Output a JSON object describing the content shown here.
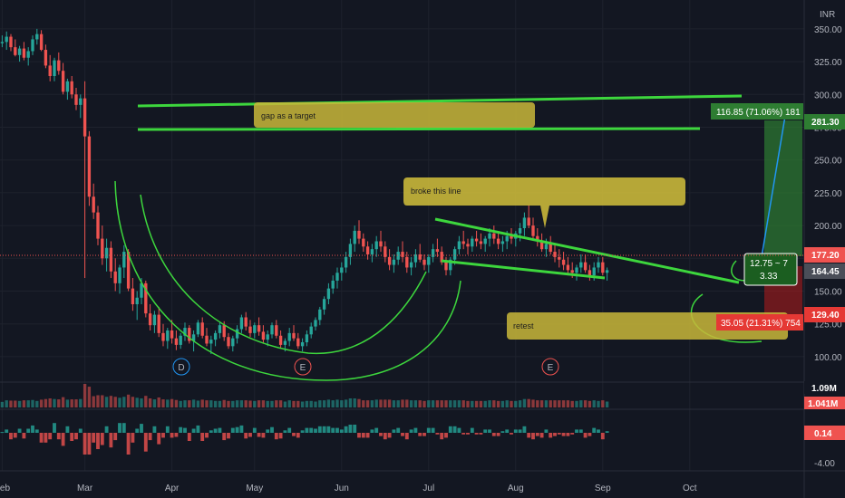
{
  "chart_data": [
    {
      "type": "candlestick",
      "currency": "INR",
      "price_axis_ticks": [
        "350.00",
        "325.00",
        "300.00",
        "275.00",
        "250.00",
        "225.00",
        "200.00",
        "175.00",
        "150.00",
        "125.00",
        "100.00"
      ],
      "ylim": [
        82,
        372
      ],
      "time_axis_labels": [
        "Feb",
        "Mar",
        "Apr",
        "May",
        "Jun",
        "Jul",
        "Aug",
        "Sep",
        "Oct"
      ],
      "month_index": [
        0,
        19,
        39,
        58,
        78,
        98,
        118,
        138,
        158
      ],
      "total_bars": 175,
      "series": [
        {
          "values": [
            [
              339,
              345,
              336,
              340
            ],
            [
              340,
              348,
              334,
              344
            ],
            [
              344,
              346,
              333,
              336
            ],
            [
              336,
              342,
              329,
              330
            ],
            [
              330,
              337,
              325,
              335
            ],
            [
              335,
              340,
              326,
              328
            ],
            [
              328,
              336,
              322,
              333
            ],
            [
              333,
              345,
              330,
              342
            ],
            [
              342,
              350,
              338,
              346
            ],
            [
              346,
              349,
              333,
              334
            ],
            [
              334,
              338,
              320,
              322
            ],
            [
              322,
              330,
              310,
              314
            ],
            [
              314,
              328,
              310,
              326
            ],
            [
              326,
              332,
              315,
              318
            ],
            [
              318,
              324,
              300,
              302
            ],
            [
              302,
              312,
              296,
              310
            ],
            [
              310,
              314,
              297,
              300
            ],
            [
              300,
              305,
              288,
              292
            ],
            [
              292,
              300,
              282,
              297
            ],
            [
              297,
              310,
              160,
              268
            ],
            [
              268,
              272,
              215,
              222
            ],
            [
              222,
              232,
              205,
              210
            ],
            [
              210,
              215,
              185,
              190
            ],
            [
              190,
              200,
              170,
              175
            ],
            [
              175,
              190,
              165,
              183
            ],
            [
              183,
              188,
              160,
              165
            ],
            [
              165,
              175,
              150,
              156
            ],
            [
              156,
              170,
              148,
              168
            ],
            [
              168,
              185,
              160,
              180
            ],
            [
              180,
              182,
              150,
              152
            ],
            [
              152,
              160,
              135,
              140
            ],
            [
              140,
              150,
              128,
              145
            ],
            [
              145,
              160,
              140,
              156
            ],
            [
              156,
              158,
              130,
              133
            ],
            [
              133,
              140,
              120,
              124
            ],
            [
              124,
              135,
              118,
              132
            ],
            [
              132,
              138,
              115,
              118
            ],
            [
              118,
              125,
              108,
              112
            ],
            [
              112,
              122,
              106,
              120
            ],
            [
              120,
              128,
              110,
              114
            ],
            [
              114,
              120,
              105,
              109
            ],
            [
              109,
              118,
              106,
              116
            ],
            [
              116,
              126,
              112,
              122
            ],
            [
              122,
              124,
              110,
              112
            ],
            [
              112,
              120,
              104,
              117
            ],
            [
              117,
              128,
              115,
              126
            ],
            [
              126,
              130,
              114,
              116
            ],
            [
              116,
              122,
              108,
              110
            ],
            [
              110,
              116,
              102,
              113
            ],
            [
              113,
              120,
              108,
              118
            ],
            [
              118,
              126,
              114,
              124
            ],
            [
              124,
              127,
              112,
              115
            ],
            [
              115,
              118,
              106,
              108
            ],
            [
              108,
              116,
              104,
              114
            ],
            [
              114,
              124,
              110,
              121
            ],
            [
              121,
              132,
              118,
              130
            ],
            [
              130,
              134,
              120,
              123
            ],
            [
              123,
              128,
              115,
              118
            ],
            [
              118,
              126,
              114,
              124
            ],
            [
              124,
              130,
              116,
              119
            ],
            [
              119,
              124,
              110,
              113
            ],
            [
              113,
              120,
              108,
              117
            ],
            [
              117,
              126,
              114,
              124
            ],
            [
              124,
              128,
              114,
              116
            ],
            [
              116,
              120,
              106,
              109
            ],
            [
              109,
              114,
              104,
              112
            ],
            [
              112,
              122,
              108,
              118
            ],
            [
              118,
              124,
              112,
              114
            ],
            [
              114,
              118,
              106,
              108
            ],
            [
              108,
              114,
              104,
              111
            ],
            [
              111,
              120,
              108,
              117
            ],
            [
              117,
              126,
              114,
              123
            ],
            [
              123,
              130,
              120,
              128
            ],
            [
              128,
              138,
              124,
              136
            ],
            [
              136,
              146,
              132,
              144
            ],
            [
              144,
              156,
              140,
              152
            ],
            [
              152,
              162,
              148,
              158
            ],
            [
              158,
              168,
              152,
              164
            ],
            [
              164,
              172,
              158,
              168
            ],
            [
              168,
              180,
              164,
              176
            ],
            [
              176,
              190,
              170,
              186
            ],
            [
              186,
              200,
              180,
              196
            ],
            [
              196,
              204,
              186,
              190
            ],
            [
              190,
              194,
              180,
              184
            ],
            [
              184,
              188,
              174,
              178
            ],
            [
              178,
              186,
              172,
              182
            ],
            [
              182,
              192,
              176,
              188
            ],
            [
              188,
              196,
              180,
              184
            ],
            [
              184,
              188,
              172,
              176
            ],
            [
              176,
              182,
              166,
              170
            ],
            [
              170,
              178,
              164,
              174
            ],
            [
              174,
              184,
              170,
              180
            ],
            [
              180,
              188,
              172,
              176
            ],
            [
              176,
              180,
              164,
              168
            ],
            [
              168,
              176,
              162,
              172
            ],
            [
              172,
              182,
              168,
              178
            ],
            [
              178,
              186,
              172,
              174
            ],
            [
              174,
              178,
              166,
              170
            ],
            [
              170,
              178,
              164,
              176
            ],
            [
              176,
              186,
              172,
              182
            ],
            [
              182,
              190,
              176,
              180
            ],
            [
              180,
              184,
              170,
              172
            ],
            [
              172,
              176,
              162,
              166
            ],
            [
              166,
              176,
              162,
              174
            ],
            [
              174,
              184,
              170,
              182
            ],
            [
              182,
              192,
              178,
              188
            ],
            [
              188,
              196,
              182,
              186
            ],
            [
              186,
              190,
              178,
              184
            ],
            [
              184,
              192,
              180,
              190
            ],
            [
              190,
              196,
              184,
              188
            ],
            [
              188,
              194,
              182,
              186
            ],
            [
              186,
              192,
              180,
              190
            ],
            [
              190,
              198,
              184,
              194
            ],
            [
              194,
              200,
              186,
              190
            ],
            [
              190,
              194,
              182,
              186
            ],
            [
              186,
              192,
              180,
              188
            ],
            [
              188,
              196,
              182,
              192
            ],
            [
              192,
              198,
              186,
              190
            ],
            [
              190,
              196,
              184,
              194
            ],
            [
              194,
              202,
              188,
              198
            ],
            [
              198,
              210,
              192,
              206
            ],
            [
              206,
              216,
              198,
              200
            ],
            [
              200,
              206,
              190,
              192
            ],
            [
              192,
              198,
              184,
              188
            ],
            [
              188,
              194,
              180,
              182
            ],
            [
              182,
              190,
              176,
              186
            ],
            [
              186,
              192,
              178,
              180
            ],
            [
              180,
              186,
              172,
              176
            ],
            [
              176,
              182,
              168,
              174
            ],
            [
              174,
              180,
              166,
              170
            ],
            [
              170,
              176,
              162,
              166
            ],
            [
              166,
              172,
              160,
              164
            ],
            [
              164,
              170,
              158,
              168
            ],
            [
              168,
              178,
              164,
              172
            ],
            [
              172,
              178,
              164,
              166
            ],
            [
              166,
              170,
              158,
              162
            ],
            [
              162,
              172,
              158,
              168
            ],
            [
              168,
              176,
              164,
              172
            ],
            [
              172,
              176,
              162,
              164
            ],
            [
              164,
              168,
              158,
              166
            ]
          ]
        }
      ],
      "volume_axis_labels": [
        "1.09M",
        "1.041M"
      ],
      "oscillator_axis_labels": [
        "0.14",
        "-4.00"
      ],
      "price_tags": {
        "target": "281.30",
        "last": "177.20",
        "current": "164.45",
        "stop": "129.40"
      },
      "annotations": {
        "gap_note": "gap as a target",
        "broke_note": "broke this line",
        "retest_note": "retest",
        "profit_label": "116.85 (71.06%) 181",
        "loss_label": "35.05 (21.31%) 754",
        "ratio_line1": "12.75 ~ 7",
        "ratio_line2": "3.33",
        "earnings_markers": [
          "D",
          "E",
          "E"
        ]
      },
      "colors": {
        "background": "#131722",
        "up": "#26a69a",
        "down": "#ef5350",
        "trendline": "#3dd63d",
        "note_fill": "#c9b73a",
        "profit_zone": "#2e7d32",
        "loss_zone": "#b71c1c",
        "projection": "#2196f3"
      }
    }
  ]
}
